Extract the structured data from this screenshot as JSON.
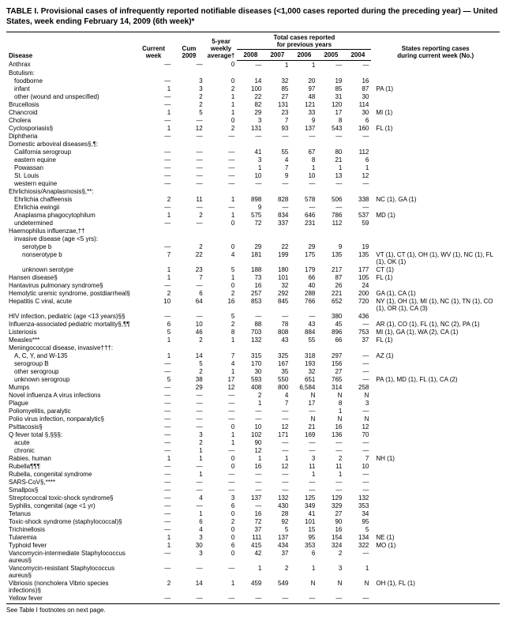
{
  "title": "TABLE I. Provisional cases of infrequently reported notifiable diseases (<1,000 cases reported during the preceding year) — United States, week ending February 14, 2009 (6th week)*",
  "footer": "See Table I footnotes on next page.",
  "headers": {
    "disease": "Disease",
    "current_week": "Current week",
    "cum_2009": "Cum 2009",
    "avg_label_l1": "5-year",
    "avg_label_l2": "weekly",
    "avg_label_l3": "average†",
    "group_label_l1": "Total cases reported",
    "group_label_l2": "for previous years",
    "y2008": "2008",
    "y2007": "2007",
    "y2006": "2006",
    "y2005": "2005",
    "y2004": "2004",
    "states_l1": "States reporting cases",
    "states_l2": "during current week (No.)"
  },
  "rows": [
    {
      "name": "Anthrax",
      "i": 0,
      "c": [
        "—",
        "—",
        "0",
        "—",
        "1",
        "1",
        "—",
        "—"
      ],
      "s": ""
    },
    {
      "name": "Botulism:",
      "i": 0,
      "c": [
        "",
        "",
        "",
        "",
        "",
        "",
        "",
        ""
      ],
      "s": ""
    },
    {
      "name": "foodborne",
      "i": 1,
      "c": [
        "—",
        "3",
        "0",
        "14",
        "32",
        "20",
        "19",
        "16"
      ],
      "s": ""
    },
    {
      "name": "infant",
      "i": 1,
      "c": [
        "1",
        "3",
        "2",
        "100",
        "85",
        "97",
        "85",
        "87"
      ],
      "s": "PA (1)"
    },
    {
      "name": "other (wound and unspecified)",
      "i": 1,
      "c": [
        "—",
        "2",
        "1",
        "22",
        "27",
        "48",
        "31",
        "30"
      ],
      "s": ""
    },
    {
      "name": "Brucellosis",
      "i": 0,
      "c": [
        "—",
        "2",
        "1",
        "82",
        "131",
        "121",
        "120",
        "114"
      ],
      "s": ""
    },
    {
      "name": "Chancroid",
      "i": 0,
      "c": [
        "1",
        "5",
        "1",
        "29",
        "23",
        "33",
        "17",
        "30"
      ],
      "s": "MI (1)"
    },
    {
      "name": "Cholera",
      "i": 0,
      "c": [
        "—",
        "—",
        "0",
        "3",
        "7",
        "9",
        "8",
        "6"
      ],
      "s": ""
    },
    {
      "name": "Cyclosporiasis§",
      "i": 0,
      "c": [
        "1",
        "12",
        "2",
        "131",
        "93",
        "137",
        "543",
        "160"
      ],
      "s": "FL (1)"
    },
    {
      "name": "Diphtheria",
      "i": 0,
      "c": [
        "—",
        "—",
        "—",
        "—",
        "—",
        "—",
        "—",
        "—"
      ],
      "s": ""
    },
    {
      "name": "Domestic arboviral diseases§,¶:",
      "i": 0,
      "c": [
        "",
        "",
        "",
        "",
        "",
        "",
        "",
        ""
      ],
      "s": ""
    },
    {
      "name": "California serogroup",
      "i": 1,
      "c": [
        "—",
        "—",
        "—",
        "41",
        "55",
        "67",
        "80",
        "112"
      ],
      "s": ""
    },
    {
      "name": "eastern equine",
      "i": 1,
      "c": [
        "—",
        "—",
        "—",
        "3",
        "4",
        "8",
        "21",
        "6"
      ],
      "s": ""
    },
    {
      "name": "Powassan",
      "i": 1,
      "c": [
        "—",
        "—",
        "—",
        "1",
        "7",
        "1",
        "1",
        "1"
      ],
      "s": ""
    },
    {
      "name": "St. Louis",
      "i": 1,
      "c": [
        "—",
        "—",
        "—",
        "10",
        "9",
        "10",
        "13",
        "12"
      ],
      "s": ""
    },
    {
      "name": "western equine",
      "i": 1,
      "c": [
        "—",
        "—",
        "—",
        "—",
        "—",
        "—",
        "—",
        "—"
      ],
      "s": ""
    },
    {
      "name": "Ehrlichiosis/Anaplasmosis§,**:",
      "i": 0,
      "c": [
        "",
        "",
        "",
        "",
        "",
        "",
        "",
        ""
      ],
      "s": ""
    },
    {
      "name": "Ehrlichia chaffeensis",
      "i": 1,
      "c": [
        "2",
        "11",
        "1",
        "898",
        "828",
        "578",
        "506",
        "338"
      ],
      "s": "NC (1), GA (1)"
    },
    {
      "name": "Ehrlichia ewingii",
      "i": 1,
      "c": [
        "—",
        "—",
        "—",
        "9",
        "—",
        "—",
        "—",
        "—"
      ],
      "s": ""
    },
    {
      "name": "Anaplasma phagocytophilum",
      "i": 1,
      "c": [
        "1",
        "2",
        "1",
        "575",
        "834",
        "646",
        "786",
        "537"
      ],
      "s": "MD (1)"
    },
    {
      "name": "undetermined",
      "i": 1,
      "c": [
        "—",
        "—",
        "0",
        "72",
        "337",
        "231",
        "112",
        "59"
      ],
      "s": ""
    },
    {
      "name": "Haemophilus influenzae,††",
      "i": 0,
      "c": [
        "",
        "",
        "",
        "",
        "",
        "",
        "",
        ""
      ],
      "s": ""
    },
    {
      "name": "invasive disease (age <5 yrs):",
      "i": 1,
      "c": [
        "",
        "",
        "",
        "",
        "",
        "",
        "",
        ""
      ],
      "s": ""
    },
    {
      "name": "serotype b",
      "i": 2,
      "c": [
        "—",
        "2",
        "0",
        "29",
        "22",
        "29",
        "9",
        "19"
      ],
      "s": ""
    },
    {
      "name": "nonserotype b",
      "i": 2,
      "c": [
        "7",
        "22",
        "4",
        "181",
        "199",
        "175",
        "135",
        "135"
      ],
      "s": "VT (1), CT (1), OH (1), WV (1), NC (1), FL (1), OK (1)"
    },
    {
      "name": "unknown serotype",
      "i": 2,
      "c": [
        "1",
        "23",
        "5",
        "188",
        "180",
        "179",
        "217",
        "177"
      ],
      "s": "CT (1)"
    },
    {
      "name": "Hansen disease§",
      "i": 0,
      "c": [
        "1",
        "7",
        "1",
        "73",
        "101",
        "66",
        "87",
        "105"
      ],
      "s": "FL (1)"
    },
    {
      "name": "Hantavirus pulmonary syndrome§",
      "i": 0,
      "c": [
        "—",
        "—",
        "0",
        "16",
        "32",
        "40",
        "26",
        "24"
      ],
      "s": ""
    },
    {
      "name": "Hemolytic uremic syndrome, postdiarrheal§",
      "i": 0,
      "c": [
        "2",
        "6",
        "2",
        "257",
        "292",
        "288",
        "221",
        "200"
      ],
      "s": "GA (1), CA (1)"
    },
    {
      "name": "Hepatitis C viral, acute",
      "i": 0,
      "c": [
        "10",
        "64",
        "16",
        "853",
        "845",
        "766",
        "652",
        "720"
      ],
      "s": "NY (1), OH (1), MI (1), NC (1), TN (1), CO (1), OR (1), CA (3)"
    },
    {
      "name": "HIV infection, pediatric (age <13 years)§§",
      "i": 0,
      "c": [
        "—",
        "—",
        "5",
        "—",
        "—",
        "—",
        "380",
        "436"
      ],
      "s": ""
    },
    {
      "name": "Influenza-associated pediatric mortality§,¶¶",
      "i": 0,
      "c": [
        "6",
        "10",
        "2",
        "88",
        "78",
        "43",
        "45",
        "—"
      ],
      "s": "AR (1), CO (1), FL (1), NC (2), PA (1)"
    },
    {
      "name": "Listeriosis",
      "i": 0,
      "c": [
        "5",
        "46",
        "8",
        "703",
        "808",
        "884",
        "896",
        "753"
      ],
      "s": "MI (1), GA (1), WA (2), CA (1)"
    },
    {
      "name": "Measles***",
      "i": 0,
      "c": [
        "1",
        "2",
        "1",
        "132",
        "43",
        "55",
        "66",
        "37"
      ],
      "s": "FL (1)"
    },
    {
      "name": "Meningococcal disease, invasive†††:",
      "i": 0,
      "c": [
        "",
        "",
        "",
        "",
        "",
        "",
        "",
        ""
      ],
      "s": ""
    },
    {
      "name": "A, C, Y, and W-135",
      "i": 1,
      "c": [
        "1",
        "14",
        "7",
        "315",
        "325",
        "318",
        "297",
        "—"
      ],
      "s": "AZ (1)"
    },
    {
      "name": "serogroup B",
      "i": 1,
      "c": [
        "—",
        "5",
        "4",
        "170",
        "167",
        "193",
        "156",
        "—"
      ],
      "s": ""
    },
    {
      "name": "other serogroup",
      "i": 1,
      "c": [
        "—",
        "2",
        "1",
        "30",
        "35",
        "32",
        "27",
        "—"
      ],
      "s": ""
    },
    {
      "name": "unknown serogroup",
      "i": 1,
      "c": [
        "5",
        "38",
        "17",
        "593",
        "550",
        "651",
        "765",
        "—"
      ],
      "s": "PA (1), MD (1), FL (1), CA (2)"
    },
    {
      "name": "Mumps",
      "i": 0,
      "c": [
        "—",
        "29",
        "12",
        "408",
        "800",
        "6,584",
        "314",
        "258"
      ],
      "s": ""
    },
    {
      "name": "Novel influenza A virus infections",
      "i": 0,
      "c": [
        "—",
        "—",
        "—",
        "2",
        "4",
        "N",
        "N",
        "N"
      ],
      "s": ""
    },
    {
      "name": "Plague",
      "i": 0,
      "c": [
        "—",
        "—",
        "—",
        "1",
        "7",
        "17",
        "8",
        "3"
      ],
      "s": ""
    },
    {
      "name": "Poliomyelitis, paralytic",
      "i": 0,
      "c": [
        "—",
        "—",
        "—",
        "—",
        "—",
        "—",
        "1",
        "—"
      ],
      "s": ""
    },
    {
      "name": "Polio virus infection, nonparalytic§",
      "i": 0,
      "c": [
        "—",
        "—",
        "—",
        "—",
        "—",
        "N",
        "N",
        "N"
      ],
      "s": ""
    },
    {
      "name": "Psittacosis§",
      "i": 0,
      "c": [
        "—",
        "—",
        "0",
        "10",
        "12",
        "21",
        "16",
        "12"
      ],
      "s": ""
    },
    {
      "name": "Q fever total §,§§§:",
      "i": 0,
      "c": [
        "—",
        "3",
        "1",
        "102",
        "171",
        "169",
        "136",
        "70"
      ],
      "s": ""
    },
    {
      "name": "acute",
      "i": 1,
      "c": [
        "—",
        "2",
        "1",
        "90",
        "—",
        "—",
        "—",
        "—"
      ],
      "s": ""
    },
    {
      "name": "chronic",
      "i": 1,
      "c": [
        "—",
        "1",
        "—",
        "12",
        "—",
        "—",
        "—",
        "—"
      ],
      "s": ""
    },
    {
      "name": "Rabies, human",
      "i": 0,
      "c": [
        "1",
        "1",
        "0",
        "1",
        "1",
        "3",
        "2",
        "7"
      ],
      "s": "NH (1)"
    },
    {
      "name": "Rubella¶¶¶",
      "i": 0,
      "c": [
        "—",
        "—",
        "0",
        "16",
        "12",
        "11",
        "11",
        "10"
      ],
      "s": ""
    },
    {
      "name": "Rubella, congenital syndrome",
      "i": 0,
      "c": [
        "—",
        "1",
        "—",
        "—",
        "—",
        "1",
        "1",
        "—"
      ],
      "s": ""
    },
    {
      "name": "SARS-CoV§,****",
      "i": 0,
      "c": [
        "—",
        "—",
        "—",
        "—",
        "—",
        "—",
        "—",
        "—"
      ],
      "s": ""
    },
    {
      "name": "Smallpox§",
      "i": 0,
      "c": [
        "—",
        "—",
        "—",
        "—",
        "—",
        "—",
        "—",
        "—"
      ],
      "s": ""
    },
    {
      "name": "Streptococcal toxic-shock syndrome§",
      "i": 0,
      "c": [
        "—",
        "4",
        "3",
        "137",
        "132",
        "125",
        "129",
        "132"
      ],
      "s": ""
    },
    {
      "name": "Syphilis, congenital (age <1 yr)",
      "i": 0,
      "c": [
        "—",
        "—",
        "6",
        "—",
        "430",
        "349",
        "329",
        "353"
      ],
      "s": ""
    },
    {
      "name": "Tetanus",
      "i": 0,
      "c": [
        "—",
        "1",
        "0",
        "16",
        "28",
        "41",
        "27",
        "34"
      ],
      "s": ""
    },
    {
      "name": "Toxic-shock syndrome (staphylococcal)§",
      "i": 0,
      "c": [
        "—",
        "6",
        "2",
        "72",
        "92",
        "101",
        "90",
        "95"
      ],
      "s": ""
    },
    {
      "name": "Trichinellosis",
      "i": 0,
      "c": [
        "—",
        "4",
        "0",
        "37",
        "5",
        "15",
        "16",
        "5"
      ],
      "s": ""
    },
    {
      "name": "Tularemia",
      "i": 0,
      "c": [
        "1",
        "3",
        "0",
        "111",
        "137",
        "95",
        "154",
        "134"
      ],
      "s": "NE (1)"
    },
    {
      "name": "Typhoid fever",
      "i": 0,
      "c": [
        "1",
        "30",
        "6",
        "415",
        "434",
        "353",
        "324",
        "322"
      ],
      "s": "MO (1)"
    },
    {
      "name": "Vancomycin-intermediate Staphylococcus aureus§",
      "i": 0,
      "c": [
        "—",
        "3",
        "0",
        "42",
        "37",
        "6",
        "2",
        "—"
      ],
      "s": ""
    },
    {
      "name": "Vancomycin-resistant Staphylococcus aureus§",
      "i": 0,
      "c": [
        "—",
        "—",
        "—",
        "1",
        "2",
        "1",
        "3",
        "1"
      ],
      "s": ""
    },
    {
      "name": "Vibriosis (noncholera Vibrio species infections)§",
      "i": 0,
      "c": [
        "2",
        "14",
        "1",
        "459",
        "549",
        "N",
        "N",
        "N"
      ],
      "s": "OH (1), FL (1)"
    },
    {
      "name": "Yellow fever",
      "i": 0,
      "c": [
        "—",
        "—",
        "—",
        "—",
        "—",
        "—",
        "—",
        "—"
      ],
      "s": ""
    }
  ]
}
